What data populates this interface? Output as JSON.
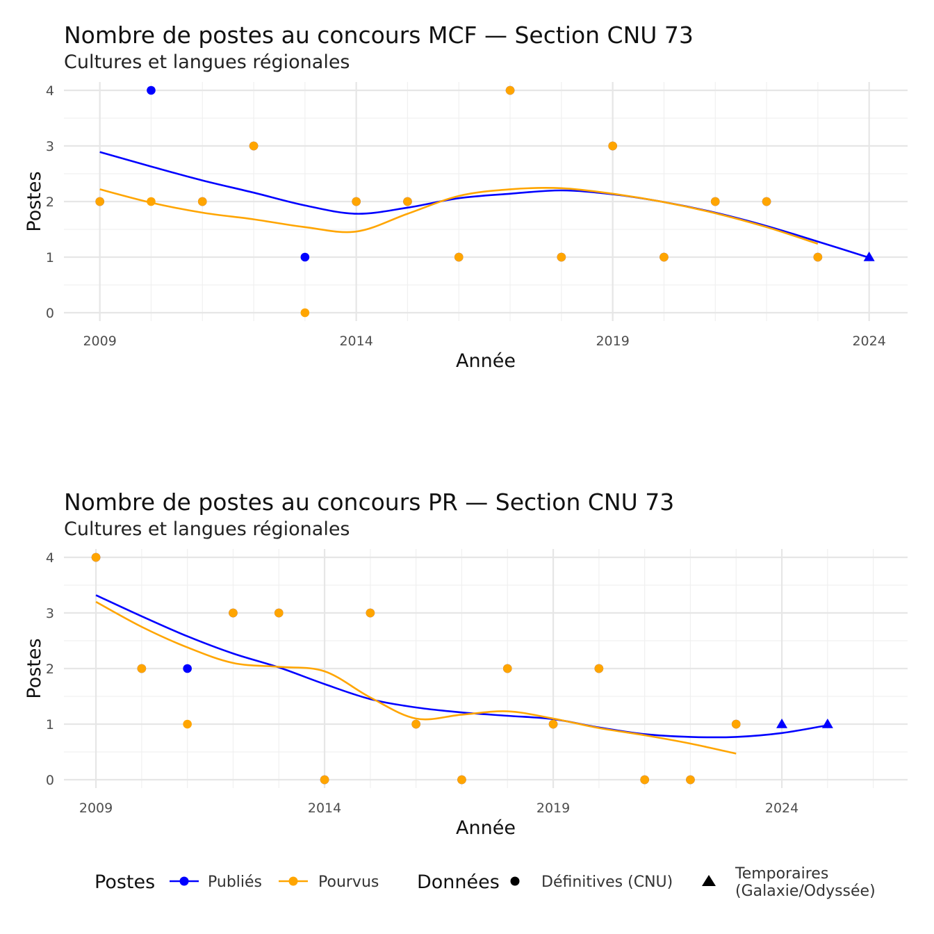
{
  "colors": {
    "publies": "#0000ff",
    "pourvus": "#ffa500"
  },
  "chart_data": [
    {
      "type": "scatter",
      "title": "Nombre de postes au concours MCF —  Section CNU 73",
      "subtitle": "Cultures et langues régionales",
      "xlabel": "Année",
      "ylabel": "Postes",
      "xlim": [
        2008.3,
        2024.75
      ],
      "ylim": [
        -0.15,
        4.15
      ],
      "x_ticks": [
        "2009",
        "2014",
        "2019",
        "2024"
      ],
      "y_ticks": [
        "0",
        "1",
        "2",
        "3",
        "4"
      ],
      "grid": true,
      "series": [
        {
          "name": "Publiés",
          "color": "#0000ff",
          "points": [
            {
              "x": 2009,
              "y": 2,
              "kind": "definitive"
            },
            {
              "x": 2010,
              "y": 4,
              "kind": "definitive"
            },
            {
              "x": 2011,
              "y": 2,
              "kind": "definitive"
            },
            {
              "x": 2012,
              "y": 3,
              "kind": "definitive"
            },
            {
              "x": 2013,
              "y": 1,
              "kind": "definitive"
            },
            {
              "x": 2014,
              "y": 2,
              "kind": "definitive"
            },
            {
              "x": 2015,
              "y": 2,
              "kind": "definitive"
            },
            {
              "x": 2016,
              "y": 1,
              "kind": "definitive"
            },
            {
              "x": 2017,
              "y": 4,
              "kind": "definitive"
            },
            {
              "x": 2018,
              "y": 1,
              "kind": "definitive"
            },
            {
              "x": 2019,
              "y": 3,
              "kind": "definitive"
            },
            {
              "x": 2020,
              "y": 1,
              "kind": "definitive"
            },
            {
              "x": 2021,
              "y": 2,
              "kind": "definitive"
            },
            {
              "x": 2022,
              "y": 2,
              "kind": "definitive"
            },
            {
              "x": 2023,
              "y": 1,
              "kind": "definitive"
            },
            {
              "x": 2024,
              "y": 1,
              "kind": "temporary"
            }
          ],
          "smooth": [
            [
              2009,
              2.89
            ],
            [
              2010,
              2.63
            ],
            [
              2011,
              2.38
            ],
            [
              2012,
              2.16
            ],
            [
              2013,
              1.93
            ],
            [
              2014,
              1.78
            ],
            [
              2015,
              1.89
            ],
            [
              2016,
              2.06
            ],
            [
              2017,
              2.14
            ],
            [
              2018,
              2.2
            ],
            [
              2019,
              2.13
            ],
            [
              2020,
              1.99
            ],
            [
              2021,
              1.8
            ],
            [
              2022,
              1.56
            ],
            [
              2023,
              1.28
            ],
            [
              2024,
              0.99
            ]
          ]
        },
        {
          "name": "Pourvus",
          "color": "#ffa500",
          "points": [
            {
              "x": 2009,
              "y": 2,
              "kind": "definitive"
            },
            {
              "x": 2010,
              "y": 2,
              "kind": "definitive"
            },
            {
              "x": 2011,
              "y": 2,
              "kind": "definitive"
            },
            {
              "x": 2012,
              "y": 3,
              "kind": "definitive"
            },
            {
              "x": 2013,
              "y": 0,
              "kind": "definitive"
            },
            {
              "x": 2014,
              "y": 2,
              "kind": "definitive"
            },
            {
              "x": 2015,
              "y": 2,
              "kind": "definitive"
            },
            {
              "x": 2016,
              "y": 1,
              "kind": "definitive"
            },
            {
              "x": 2017,
              "y": 4,
              "kind": "definitive"
            },
            {
              "x": 2018,
              "y": 1,
              "kind": "definitive"
            },
            {
              "x": 2019,
              "y": 3,
              "kind": "definitive"
            },
            {
              "x": 2020,
              "y": 1,
              "kind": "definitive"
            },
            {
              "x": 2021,
              "y": 2,
              "kind": "definitive"
            },
            {
              "x": 2022,
              "y": 2,
              "kind": "definitive"
            },
            {
              "x": 2023,
              "y": 1,
              "kind": "definitive"
            }
          ],
          "smooth": [
            [
              2009,
              2.22
            ],
            [
              2010,
              1.98
            ],
            [
              2011,
              1.8
            ],
            [
              2012,
              1.68
            ],
            [
              2013,
              1.54
            ],
            [
              2014,
              1.46
            ],
            [
              2015,
              1.78
            ],
            [
              2016,
              2.1
            ],
            [
              2017,
              2.22
            ],
            [
              2018,
              2.24
            ],
            [
              2019,
              2.14
            ],
            [
              2020,
              1.99
            ],
            [
              2021,
              1.79
            ],
            [
              2022,
              1.54
            ],
            [
              2023,
              1.24
            ]
          ]
        }
      ]
    },
    {
      "type": "scatter",
      "title": "Nombre de postes au concours PR —  Section CNU 73",
      "subtitle": "Cultures et langues régionales",
      "xlabel": "Année",
      "ylabel": "Postes",
      "xlim": [
        2008.3,
        2026.75
      ],
      "ylim": [
        -0.15,
        4.15
      ],
      "x_ticks": [
        "2009",
        "2014",
        "2019",
        "2024"
      ],
      "y_ticks": [
        "0",
        "1",
        "2",
        "3",
        "4"
      ],
      "grid": true,
      "series": [
        {
          "name": "Publiés",
          "color": "#0000ff",
          "points": [
            {
              "x": 2009,
              "y": 4,
              "kind": "definitive"
            },
            {
              "x": 2010,
              "y": 2,
              "kind": "definitive"
            },
            {
              "x": 2011,
              "y": 2,
              "kind": "definitive"
            },
            {
              "x": 2012,
              "y": 3,
              "kind": "definitive"
            },
            {
              "x": 2013,
              "y": 3,
              "kind": "definitive"
            },
            {
              "x": 2014,
              "y": 0,
              "kind": "definitive"
            },
            {
              "x": 2015,
              "y": 3,
              "kind": "definitive"
            },
            {
              "x": 2016,
              "y": 1,
              "kind": "definitive"
            },
            {
              "x": 2017,
              "y": 0,
              "kind": "definitive"
            },
            {
              "x": 2018,
              "y": 2,
              "kind": "definitive"
            },
            {
              "x": 2019,
              "y": 1,
              "kind": "definitive"
            },
            {
              "x": 2020,
              "y": 2,
              "kind": "definitive"
            },
            {
              "x": 2021,
              "y": 0,
              "kind": "definitive"
            },
            {
              "x": 2022,
              "y": 0,
              "kind": "definitive"
            },
            {
              "x": 2023,
              "y": 1,
              "kind": "definitive"
            },
            {
              "x": 2024,
              "y": 1,
              "kind": "temporary"
            },
            {
              "x": 2025,
              "y": 1,
              "kind": "temporary"
            }
          ],
          "smooth": [
            [
              2009,
              3.32
            ],
            [
              2010,
              2.94
            ],
            [
              2011,
              2.58
            ],
            [
              2012,
              2.27
            ],
            [
              2013,
              2.02
            ],
            [
              2014,
              1.72
            ],
            [
              2015,
              1.45
            ],
            [
              2016,
              1.3
            ],
            [
              2017,
              1.21
            ],
            [
              2018,
              1.15
            ],
            [
              2019,
              1.09
            ],
            [
              2020,
              0.94
            ],
            [
              2021,
              0.82
            ],
            [
              2022,
              0.77
            ],
            [
              2023,
              0.77
            ],
            [
              2024,
              0.84
            ],
            [
              2025,
              0.98
            ]
          ]
        },
        {
          "name": "Pourvus",
          "color": "#ffa500",
          "points": [
            {
              "x": 2009,
              "y": 4,
              "kind": "definitive"
            },
            {
              "x": 2010,
              "y": 2,
              "kind": "definitive"
            },
            {
              "x": 2011,
              "y": 1,
              "kind": "definitive"
            },
            {
              "x": 2012,
              "y": 3,
              "kind": "definitive"
            },
            {
              "x": 2013,
              "y": 3,
              "kind": "definitive"
            },
            {
              "x": 2014,
              "y": 0,
              "kind": "definitive"
            },
            {
              "x": 2015,
              "y": 3,
              "kind": "definitive"
            },
            {
              "x": 2016,
              "y": 1,
              "kind": "definitive"
            },
            {
              "x": 2017,
              "y": 0,
              "kind": "definitive"
            },
            {
              "x": 2018,
              "y": 2,
              "kind": "definitive"
            },
            {
              "x": 2019,
              "y": 1,
              "kind": "definitive"
            },
            {
              "x": 2020,
              "y": 2,
              "kind": "definitive"
            },
            {
              "x": 2021,
              "y": 0,
              "kind": "definitive"
            },
            {
              "x": 2022,
              "y": 0,
              "kind": "definitive"
            },
            {
              "x": 2023,
              "y": 1,
              "kind": "definitive"
            }
          ],
          "smooth": [
            [
              2009,
              3.2
            ],
            [
              2010,
              2.75
            ],
            [
              2011,
              2.38
            ],
            [
              2012,
              2.1
            ],
            [
              2013,
              2.03
            ],
            [
              2014,
              1.95
            ],
            [
              2015,
              1.48
            ],
            [
              2016,
              1.1
            ],
            [
              2017,
              1.17
            ],
            [
              2018,
              1.23
            ],
            [
              2019,
              1.1
            ],
            [
              2020,
              0.93
            ],
            [
              2021,
              0.8
            ],
            [
              2022,
              0.65
            ],
            [
              2023,
              0.47
            ]
          ]
        }
      ]
    }
  ],
  "legend": {
    "postes_title": "Postes",
    "publies_label": "Publiés",
    "pourvus_label": "Pourvus",
    "donnees_title": "Données",
    "definitives_label": "Définitives (CNU)",
    "temporaires_line1": "Temporaires",
    "temporaires_line2": "(Galaxie/Odyssée)"
  }
}
